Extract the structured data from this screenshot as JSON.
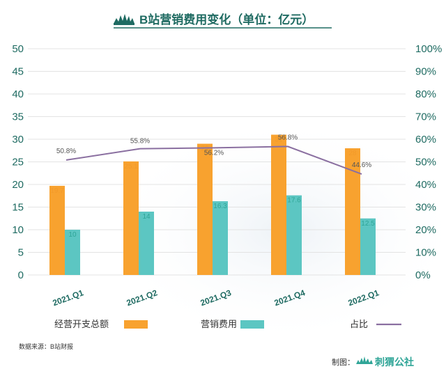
{
  "header": {
    "title": "B站营销费用变化（单位：亿元）"
  },
  "footer": {
    "source": "数据来源：B站财报",
    "credit_label": "制图：",
    "credit_brand": "刺猬公社"
  },
  "legend": {
    "items": [
      {
        "label": "经营开支总额",
        "color": "#F8A22F",
        "kind": "bar"
      },
      {
        "label": "营销费用",
        "color": "#5CC6C2",
        "kind": "bar"
      },
      {
        "label": "占比",
        "color": "#8A6FA0",
        "kind": "line"
      }
    ]
  },
  "colors": {
    "accent": "#1F6B62",
    "grid": "#E3E3E3",
    "bar_total": "#F8A22F",
    "bar_marketing": "#5CC6C2",
    "line": "#8A6FA0"
  },
  "chart_data": {
    "type": "bar",
    "categories": [
      "2021.Q1",
      "2021.Q2",
      "2021.Q3",
      "2021.Q4",
      "2022.Q1"
    ],
    "series": [
      {
        "name": "经营开支总额",
        "type": "bar",
        "axis": "left",
        "values": [
          19.7,
          25.1,
          29,
          31,
          28
        ],
        "labels": [
          "19.7",
          "25.1",
          "29",
          "31",
          "28"
        ]
      },
      {
        "name": "营销费用",
        "type": "bar",
        "axis": "left",
        "values": [
          10,
          14,
          16.3,
          17.6,
          12.5
        ],
        "labels": [
          "10",
          "14",
          "16.3",
          "17.6",
          "12.5"
        ]
      },
      {
        "name": "占比",
        "type": "line",
        "axis": "right",
        "values": [
          50.8,
          55.8,
          56.2,
          56.8,
          44.6
        ],
        "labels": [
          "50.8%",
          "55.8%",
          "56.2%",
          "56.8%",
          "44.6%"
        ]
      }
    ],
    "y_left": {
      "range": [
        0,
        50
      ],
      "ticks": [
        "0",
        "5",
        "10",
        "15",
        "20",
        "25",
        "30",
        "35",
        "40",
        "45",
        "50"
      ]
    },
    "y_right": {
      "range": [
        0,
        100
      ],
      "ticks": [
        "0%",
        "10%",
        "20%",
        "30%",
        "40%",
        "50%",
        "60%",
        "70%",
        "80%",
        "90%",
        "100%"
      ]
    },
    "grid": true,
    "legend_position": "bottom"
  }
}
